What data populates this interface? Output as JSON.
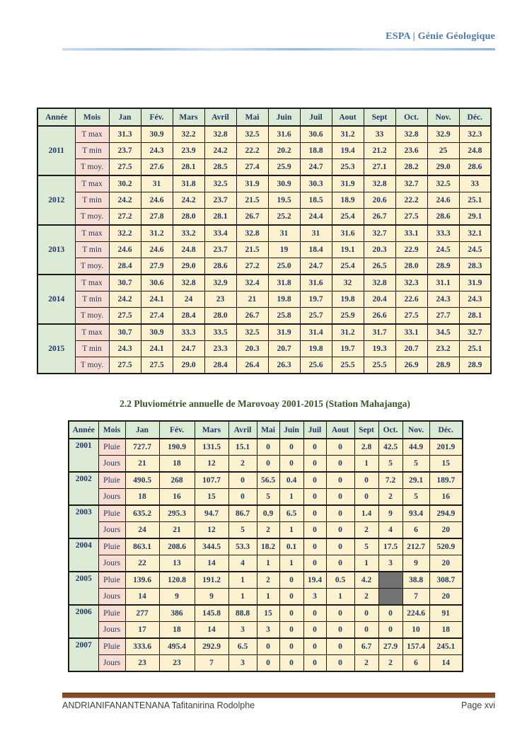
{
  "header": {
    "brand": "ESPA | Génie Géologique"
  },
  "temperature_table": {
    "columns": [
      "Année",
      "Mois",
      "Jan",
      "Fév.",
      "Mars",
      "Avril",
      "Mai",
      "Juin",
      "Juil",
      "Aout",
      "Sept",
      "Oct.",
      "Nov.",
      "Déc."
    ],
    "years": [
      {
        "year": "2011",
        "rows": [
          {
            "label": "T max",
            "values": [
              "31.3",
              "30.9",
              "32.2",
              "32.8",
              "32.5",
              "31.6",
              "30.6",
              "31.2",
              "33",
              "32.8",
              "32.9",
              "32.3"
            ]
          },
          {
            "label": "T min",
            "values": [
              "23.7",
              "24.3",
              "23.9",
              "24.2",
              "22.2",
              "20.2",
              "18.8",
              "19.4",
              "21.2",
              "23.6",
              "25",
              "24.8"
            ]
          },
          {
            "label": "T moy.",
            "values": [
              "27.5",
              "27.6",
              "28.1",
              "28.5",
              "27.4",
              "25.9",
              "24.7",
              "25.3",
              "27.1",
              "28.2",
              "29.0",
              "28.6"
            ]
          }
        ]
      },
      {
        "year": "2012",
        "rows": [
          {
            "label": "T max",
            "values": [
              "30.2",
              "31",
              "31.8",
              "32.5",
              "31.9",
              "30.9",
              "30.3",
              "31.9",
              "32.8",
              "32.7",
              "32.5",
              "33"
            ]
          },
          {
            "label": "T min",
            "values": [
              "24.2",
              "24.6",
              "24.2",
              "23.7",
              "21.5",
              "19.5",
              "18.5",
              "18.9",
              "20.6",
              "22.2",
              "24.6",
              "25.1"
            ]
          },
          {
            "label": "T moy.",
            "values": [
              "27.2",
              "27.8",
              "28.0",
              "28.1",
              "26.7",
              "25.2",
              "24.4",
              "25.4",
              "26.7",
              "27.5",
              "28.6",
              "29.1"
            ]
          }
        ]
      },
      {
        "year": "2013",
        "rows": [
          {
            "label": "T max",
            "values": [
              "32.2",
              "31.2",
              "33.2",
              "33.4",
              "32.8",
              "31",
              "31",
              "31.6",
              "32.7",
              "33.1",
              "33.3",
              "32.1"
            ]
          },
          {
            "label": "T min",
            "values": [
              "24.6",
              "24.6",
              "24.8",
              "23.7",
              "21.5",
              "19",
              "18.4",
              "19.1",
              "20.3",
              "22.9",
              "24.5",
              "24.5"
            ]
          },
          {
            "label": "T moy.",
            "values": [
              "28.4",
              "27.9",
              "29.0",
              "28.6",
              "27.2",
              "25.0",
              "24.7",
              "25.4",
              "26.5",
              "28.0",
              "28.9",
              "28.3"
            ]
          }
        ]
      },
      {
        "year": "2014",
        "rows": [
          {
            "label": "T max",
            "values": [
              "30.7",
              "30.6",
              "32.8",
              "32.9",
              "32.4",
              "31.8",
              "31.6",
              "32",
              "32.8",
              "32.3",
              "31.1",
              "31.9"
            ]
          },
          {
            "label": "T min",
            "values": [
              "24.2",
              "24.1",
              "24",
              "23",
              "21",
              "19.8",
              "19.7",
              "19.8",
              "20.4",
              "22.6",
              "24.3",
              "24.3"
            ]
          },
          {
            "label": "T moy.",
            "values": [
              "27.5",
              "27.4",
              "28.4",
              "28.0",
              "26.7",
              "25.8",
              "25.7",
              "25.9",
              "26.6",
              "27.5",
              "27.7",
              "28.1"
            ]
          }
        ]
      },
      {
        "year": "2015",
        "rows": [
          {
            "label": "T max",
            "values": [
              "30.7",
              "30.9",
              "33.3",
              "33.5",
              "32.5",
              "31.9",
              "31.4",
              "31.2",
              "31.7",
              "33.1",
              "34.5",
              "32.7"
            ]
          },
          {
            "label": "T min",
            "values": [
              "24.3",
              "24.1",
              "24.7",
              "23.3",
              "20.3",
              "20.7",
              "19.8",
              "19.7",
              "19.3",
              "20.7",
              "23.2",
              "25.1"
            ]
          },
          {
            "label": "T moy.",
            "values": [
              "27.5",
              "27.5",
              "29.0",
              "28.4",
              "26.4",
              "26.3",
              "25.6",
              "25.5",
              "25.5",
              "26.9",
              "28.9",
              "28.9"
            ]
          }
        ]
      }
    ]
  },
  "section_title": "2.2 Pluviométrie annuelle de Marovoay 2001-2015 (Station Mahajanga)",
  "rain_table": {
    "columns": [
      "Année",
      "Mois",
      "Jan",
      "Fév.",
      "Mars",
      "Avril",
      "Mai",
      "Juin",
      "Juil",
      "Aout",
      "Sept",
      "Oct.",
      "Nov.",
      "Déc."
    ],
    "years": [
      {
        "year": "2001",
        "rows": [
          {
            "label": "Pluie",
            "values": [
              "727.7",
              "190.9",
              "131.5",
              "15.1",
              "0",
              "0",
              "0",
              "0",
              "2.8",
              "42.5",
              "44.9",
              "201.9"
            ]
          },
          {
            "label": "Jours",
            "values": [
              "21",
              "18",
              "12",
              "2",
              "0",
              "0",
              "0",
              "0",
              "1",
              "5",
              "5",
              "15"
            ]
          }
        ]
      },
      {
        "year": "2002",
        "rows": [
          {
            "label": "Pluie",
            "values": [
              "490.5",
              "268",
              "107.7",
              "0",
              "56.5",
              "0.4",
              "0",
              "0",
              "0",
              "7.2",
              "29.1",
              "189.7"
            ]
          },
          {
            "label": "Jours",
            "values": [
              "18",
              "16",
              "15",
              "0",
              "5",
              "1",
              "0",
              "0",
              "0",
              "2",
              "5",
              "16"
            ]
          }
        ]
      },
      {
        "year": "2003",
        "rows": [
          {
            "label": "Pluie",
            "values": [
              "635.2",
              "295.3",
              "94.7",
              "86.7",
              "0.9",
              "6.5",
              "0",
              "0",
              "1.4",
              "9",
              "93.4",
              "294.9"
            ]
          },
          {
            "label": "Jours",
            "values": [
              "24",
              "21",
              "12",
              "5",
              "2",
              "1",
              "0",
              "0",
              "2",
              "4",
              "6",
              "20"
            ]
          }
        ]
      },
      {
        "year": "2004",
        "rows": [
          {
            "label": "Pluie",
            "values": [
              "863.1",
              "208.6",
              "344.5",
              "53.3",
              "18.2",
              "0.1",
              "0",
              "0",
              "5",
              "17.5",
              "212.7",
              "520.9"
            ]
          },
          {
            "label": "Jours",
            "values": [
              "22",
              "13",
              "14",
              "4",
              "1",
              "1",
              "0",
              "0",
              "1",
              "3",
              "9",
              "20"
            ]
          }
        ]
      },
      {
        "year": "2005",
        "rows": [
          {
            "label": "Pluie",
            "values": [
              "139.6",
              "120.8",
              "191.2",
              "1",
              "2",
              "0",
              "19.4",
              "0.5",
              "4.2",
              null,
              "38.8",
              "308.7"
            ]
          },
          {
            "label": "Jours",
            "values": [
              "14",
              "9",
              "9",
              "1",
              "1",
              "0",
              "3",
              "1",
              "2",
              null,
              "7",
              "20"
            ]
          }
        ]
      },
      {
        "year": "2006",
        "rows": [
          {
            "label": "Pluie",
            "values": [
              "277",
              "386",
              "145.8",
              "88.8",
              "15",
              "0",
              "0",
              "0",
              "0",
              "0",
              "224.6",
              "91"
            ]
          },
          {
            "label": "Jours",
            "values": [
              "17",
              "18",
              "14",
              "3",
              "3",
              "0",
              "0",
              "0",
              "0",
              "0",
              "10",
              "18"
            ]
          }
        ]
      },
      {
        "year": "2007",
        "rows": [
          {
            "label": "Pluie",
            "values": [
              "333.6",
              "495.4",
              "292.9",
              "6.5",
              "0",
              "0",
              "0",
              "0",
              "6.7",
              "27.9",
              "157.4",
              "245.1"
            ]
          },
          {
            "label": "Jours",
            "values": [
              "23",
              "23",
              "7",
              "3",
              "0",
              "0",
              "0",
              "0",
              "2",
              "2",
              "6",
              "14"
            ]
          }
        ]
      }
    ]
  },
  "footer": {
    "author": "ANDRIANIFANANTENANA Tafitanirina Rodolphe",
    "page": "Page xvi"
  },
  "colors": {
    "header_green": "#dcead6",
    "month_pink": "#f8ddd3",
    "value_cream": "#fdf2d0",
    "text_navy": "#1f3864",
    "missing_gray": "#737373",
    "title_green": "#375623",
    "brand_blue": "#4a7ab5",
    "footer_brown": "#8a4a22"
  }
}
